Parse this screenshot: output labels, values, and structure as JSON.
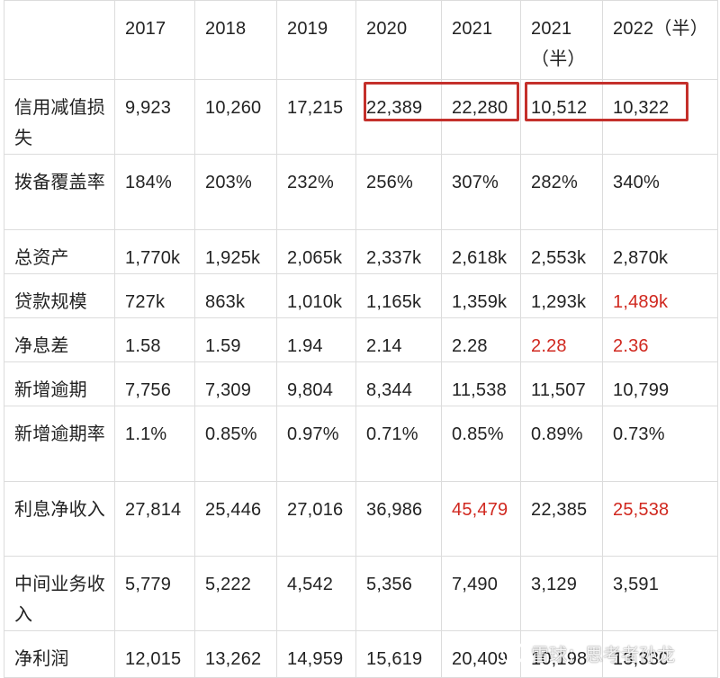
{
  "columns": [
    "",
    "2017",
    "2018",
    "2019",
    "2020",
    "2021",
    "2021（半）",
    "2022（半）"
  ],
  "rows": [
    {
      "label": "信用减值损失",
      "cells": [
        "9,923",
        "10,260",
        "17,215",
        "22,389",
        "22,280",
        "10,512",
        "10,322"
      ]
    },
    {
      "label": "拨备覆盖率",
      "cells": [
        "184%",
        "203%",
        "232%",
        "256%",
        "307%",
        "282%",
        "340%"
      ]
    },
    {
      "label": "总资产",
      "cells": [
        "1,770k",
        "1,925k",
        "2,065k",
        "2,337k",
        "2,618k",
        "2,553k",
        "2,870k"
      ]
    },
    {
      "label": "贷款规模",
      "cells": [
        "727k",
        "863k",
        "1,010k",
        "1,165k",
        "1,359k",
        "1,293k",
        "1,489k"
      ]
    },
    {
      "label": "净息差",
      "cells": [
        "1.58",
        "1.59",
        "1.94",
        "2.14",
        "2.28",
        "2.28",
        "2.36"
      ]
    },
    {
      "label": "新增逾期",
      "cells": [
        "7,756",
        "7,309",
        "9,804",
        "8,344",
        "11,538",
        "11,507",
        "10,799"
      ]
    },
    {
      "label": "新增逾期率",
      "cells": [
        "1.1%",
        "0.85%",
        "0.97%",
        "0.71%",
        "0.85%",
        "0.89%",
        "0.73%"
      ]
    },
    {
      "label": "利息净收入",
      "cells": [
        "27,814",
        "25,446",
        "27,016",
        "36,986",
        "45,479",
        "22,385",
        "25,538"
      ]
    },
    {
      "label": "中间业务收入",
      "cells": [
        "5,779",
        "5,222",
        "4,542",
        "5,356",
        "7,490",
        "3,129",
        "3,591"
      ]
    },
    {
      "label": "净利润",
      "cells": [
        "12,015",
        "13,262",
        "14,959",
        "15,619",
        "20,409",
        "10,198",
        "13,330"
      ]
    }
  ],
  "highlight_color": "#d0281f",
  "red_cells": [
    [
      3,
      6
    ],
    [
      4,
      5
    ],
    [
      4,
      6
    ],
    [
      7,
      4
    ],
    [
      7,
      6
    ]
  ],
  "watermark": {
    "text": "雪球：思考者孙龙",
    "icon": "snowball-logo-icon"
  }
}
